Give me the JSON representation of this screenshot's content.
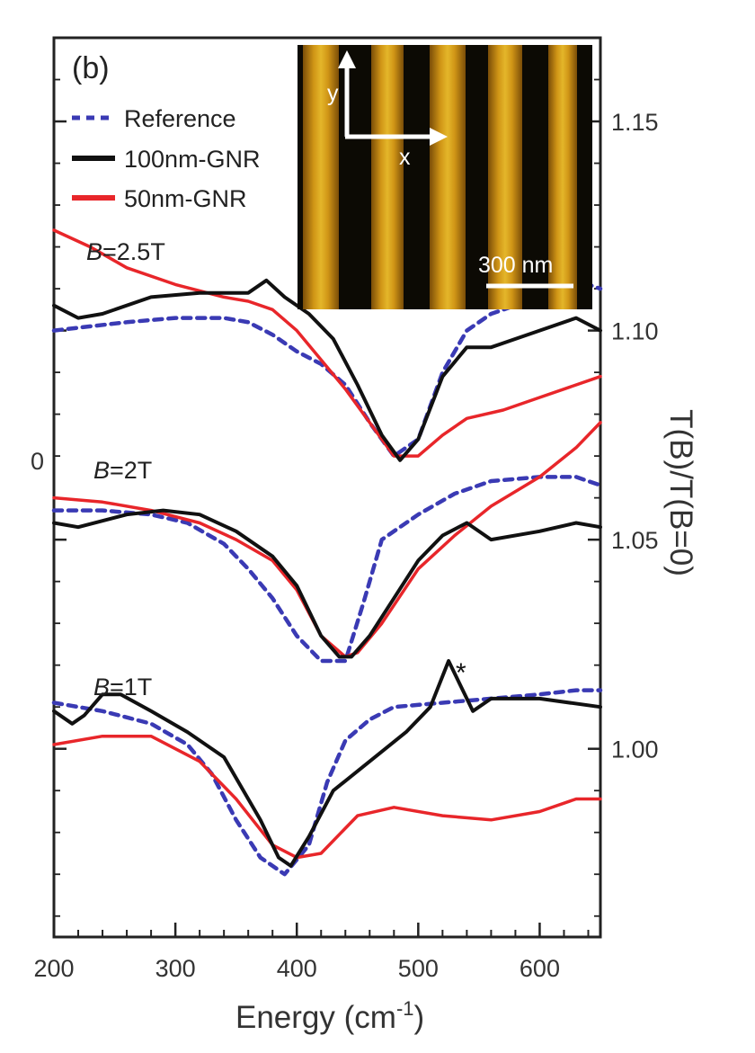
{
  "chart_data": {
    "type": "line",
    "panel_label": "(b)",
    "xlabel": "Energy (cm",
    "xlabel_sup": "-1",
    "xlabel_close": ")",
    "ylabel": "T(B)/T(B=0)",
    "xlim": [
      200,
      650
    ],
    "ylim": [
      0.955,
      1.17
    ],
    "x_ticks": [
      200,
      300,
      400,
      500,
      600
    ],
    "y_ticks_right": [
      1.0,
      1.05,
      1.1,
      1.15
    ],
    "y_tick_labels_right": [
      "1.00",
      "1.05",
      "1.10",
      "1.15"
    ],
    "legend": [
      {
        "label": "Reference",
        "color": "#3a3ab4",
        "style": "dotted"
      },
      {
        "label": "100nm-GNR",
        "color": "#111111",
        "style": "solid"
      },
      {
        "label": "50nm-GNR",
        "color": "#e8262a",
        "style": "solid"
      }
    ],
    "fields": [
      {
        "label_prefix": "B",
        "label_suffix": "=2.5T",
        "series": [
          {
            "name": "Reference",
            "x": [
              200,
              230,
              260,
              300,
              340,
              360,
              380,
              400,
              420,
              440,
              460,
              480,
              500,
              520,
              540,
              560,
              600,
              630,
              650
            ],
            "y": [
              1.1,
              1.101,
              1.102,
              1.103,
              1.103,
              1.102,
              1.099,
              1.095,
              1.092,
              1.087,
              1.078,
              1.07,
              1.074,
              1.09,
              1.1,
              1.104,
              1.108,
              1.112,
              1.11
            ]
          },
          {
            "name": "100nm-GNR",
            "x": [
              200,
              220,
              240,
              280,
              320,
              360,
              375,
              390,
              410,
              430,
              450,
              470,
              485,
              500,
              520,
              540,
              560,
              600,
              630,
              650
            ],
            "y": [
              1.106,
              1.103,
              1.104,
              1.108,
              1.109,
              1.109,
              1.112,
              1.108,
              1.104,
              1.098,
              1.087,
              1.075,
              1.069,
              1.074,
              1.089,
              1.096,
              1.096,
              1.1,
              1.103,
              1.1
            ]
          },
          {
            "name": "50nm-GNR",
            "x": [
              200,
              230,
              260,
              300,
              340,
              360,
              380,
              400,
              420,
              440,
              460,
              480,
              500,
              520,
              540,
              570,
              600,
              630,
              650
            ],
            "y": [
              1.124,
              1.12,
              1.115,
              1.111,
              1.108,
              1.107,
              1.105,
              1.1,
              1.093,
              1.086,
              1.078,
              1.07,
              1.07,
              1.075,
              1.079,
              1.081,
              1.084,
              1.087,
              1.089
            ]
          }
        ]
      },
      {
        "label_prefix": "B",
        "label_suffix": "=2T",
        "series": [
          {
            "name": "Reference",
            "x": [
              200,
              240,
              280,
              310,
              340,
              360,
              380,
              400,
              420,
              440,
              455,
              470,
              500,
              530,
              560,
              600,
              630,
              650
            ],
            "y": [
              1.057,
              1.057,
              1.056,
              1.054,
              1.049,
              1.043,
              1.036,
              1.027,
              1.021,
              1.021,
              1.035,
              1.05,
              1.056,
              1.061,
              1.064,
              1.065,
              1.065,
              1.063
            ]
          },
          {
            "name": "100nm-GNR",
            "x": [
              200,
              220,
              260,
              290,
              320,
              350,
              380,
              400,
              420,
              435,
              445,
              460,
              480,
              500,
              520,
              540,
              560,
              600,
              630,
              650
            ],
            "y": [
              1.054,
              1.053,
              1.056,
              1.057,
              1.056,
              1.052,
              1.046,
              1.039,
              1.027,
              1.022,
              1.022,
              1.027,
              1.036,
              1.045,
              1.051,
              1.054,
              1.05,
              1.052,
              1.054,
              1.053
            ]
          },
          {
            "name": "50nm-GNR",
            "x": [
              200,
              240,
              280,
              320,
              350,
              380,
              400,
              420,
              440,
              450,
              470,
              500,
              530,
              560,
              600,
              630,
              650
            ],
            "y": [
              1.06,
              1.059,
              1.057,
              1.054,
              1.05,
              1.045,
              1.038,
              1.027,
              1.022,
              1.023,
              1.03,
              1.043,
              1.051,
              1.058,
              1.065,
              1.072,
              1.078
            ]
          }
        ]
      },
      {
        "label_prefix": "B",
        "label_suffix": "=1T",
        "series": [
          {
            "name": "Reference",
            "x": [
              200,
              240,
              280,
              310,
              330,
              350,
              370,
              390,
              410,
              425,
              440,
              460,
              480,
              520,
              560,
              600,
              630,
              650
            ],
            "y": [
              1.011,
              1.009,
              1.006,
              1.001,
              0.994,
              0.983,
              0.974,
              0.97,
              0.977,
              0.992,
              1.002,
              1.007,
              1.01,
              1.011,
              1.012,
              1.013,
              1.014,
              1.014
            ]
          },
          {
            "name": "100nm-GNR",
            "x": [
              200,
              215,
              225,
              240,
              255,
              280,
              310,
              340,
              370,
              385,
              395,
              410,
              430,
              460,
              490,
              510,
              525,
              535,
              545,
              560,
              600,
              650
            ],
            "y": [
              1.009,
              1.006,
              1.008,
              1.013,
              1.013,
              1.009,
              1.004,
              0.998,
              0.983,
              0.974,
              0.972,
              0.979,
              0.99,
              0.997,
              1.004,
              1.01,
              1.021,
              1.015,
              1.009,
              1.012,
              1.012,
              1.01
            ]
          },
          {
            "name": "50nm-GNR",
            "x": [
              200,
              240,
              280,
              320,
              350,
              380,
              400,
              420,
              450,
              480,
              520,
              560,
              600,
              630,
              650
            ],
            "y": [
              1.001,
              1.003,
              1.003,
              0.997,
              0.988,
              0.977,
              0.974,
              0.975,
              0.984,
              0.986,
              0.984,
              0.983,
              0.985,
              0.988,
              0.988
            ]
          }
        ]
      }
    ],
    "annotation": {
      "text": "*",
      "x": 537,
      "y": 1.023
    },
    "left_tick_fragment": "0"
  },
  "inset": {
    "axis_y": "y",
    "axis_x": "x",
    "scale_bar": "300 nm"
  },
  "colors": {
    "reference": "#3a3ab4",
    "gnr100": "#111111",
    "gnr50": "#e8262a",
    "stripe": "#d8a21a",
    "inset_bg": "#0c0a04"
  }
}
